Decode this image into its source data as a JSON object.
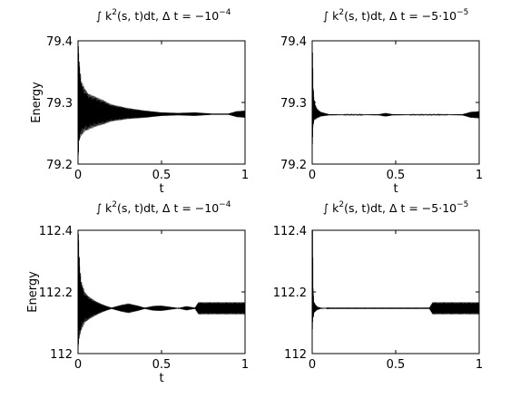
{
  "chart_data": [
    {
      "type": "line",
      "title": {
        "pre": "∫ k",
        "sup1": "2",
        "mid": "(s, t)dt,   Δ t = −10",
        "sup2": "−4"
      },
      "xlabel": "t",
      "ylabel": "Energy",
      "xlim": [
        0,
        1
      ],
      "ylim": [
        79.2,
        79.4
      ],
      "xticks": [
        "0",
        "0.5",
        "1"
      ],
      "yticks": [
        "79.2",
        "79.3",
        "79.4"
      ],
      "series": [
        {
          "color": "#000000",
          "x": [
            0,
            0.005,
            0.01,
            0.02,
            0.04,
            0.06,
            0.1,
            0.15,
            0.2,
            0.3,
            0.4,
            0.5,
            0.6,
            0.7,
            0.8,
            0.9,
            0.95,
            1.0
          ],
          "mean": [
            79.3,
            79.305,
            79.3,
            79.29,
            79.288,
            79.285,
            79.285,
            79.284,
            79.283,
            79.282,
            79.281,
            79.281,
            79.281,
            79.281,
            79.281,
            79.281,
            79.281,
            79.281
          ],
          "amplitude": [
            0.1,
            0.08,
            0.06,
            0.045,
            0.035,
            0.03,
            0.025,
            0.02,
            0.014,
            0.009,
            0.006,
            0.003,
            0.002,
            0.003,
            0.001,
            0.001,
            0.005,
            0.006
          ]
        }
      ]
    },
    {
      "type": "line",
      "title": {
        "pre": "∫ k",
        "sup1": "2",
        "mid": "(s, t)dt,   Δ t = −5·10",
        "sup2": "−5"
      },
      "xlabel": "t",
      "ylabel": "",
      "xlim": [
        0,
        1
      ],
      "ylim": [
        79.2,
        79.4
      ],
      "xticks": [
        "0",
        "0.5",
        "1"
      ],
      "yticks": [
        "79.2",
        "79.3",
        "79.4"
      ],
      "series": [
        {
          "color": "#000000",
          "x": [
            0,
            0.003,
            0.006,
            0.01,
            0.02,
            0.03,
            0.05,
            0.1,
            0.2,
            0.3,
            0.4,
            0.44,
            0.48,
            0.6,
            0.8,
            0.9,
            0.95,
            1.0
          ],
          "mean": [
            79.3,
            79.31,
            79.295,
            79.29,
            79.284,
            79.282,
            79.281,
            79.28,
            79.28,
            79.28,
            79.28,
            79.28,
            79.28,
            79.28,
            79.28,
            79.28,
            79.28,
            79.28
          ],
          "amplitude": [
            0.1,
            0.07,
            0.04,
            0.02,
            0.012,
            0.008,
            0.004,
            0.001,
            0.0005,
            0.0005,
            0.001,
            0.003,
            0.001,
            0.0005,
            0.0005,
            0.001,
            0.005,
            0.006
          ]
        }
      ]
    },
    {
      "type": "line",
      "title": {
        "pre": "∫ k",
        "sup1": "2",
        "mid": "(s, t)dt,   Δ t = −10",
        "sup2": "−4"
      },
      "xlabel": "t",
      "ylabel": "Energy",
      "xlim": [
        0,
        1
      ],
      "ylim": [
        112,
        112.4
      ],
      "xticks": [
        "0",
        "0.5",
        "1"
      ],
      "yticks": [
        "112",
        "112.2",
        "112.4"
      ],
      "series": [
        {
          "color": "#000000",
          "x": [
            0,
            0.005,
            0.01,
            0.02,
            0.04,
            0.06,
            0.1,
            0.15,
            0.2,
            0.25,
            0.3,
            0.35,
            0.4,
            0.45,
            0.5,
            0.55,
            0.6,
            0.65,
            0.7,
            0.72,
            0.75,
            0.8,
            0.9,
            1.0
          ],
          "mean": [
            112.2,
            112.21,
            112.17,
            112.155,
            112.15,
            112.148,
            112.147,
            112.147,
            112.147,
            112.147,
            112.147,
            112.147,
            112.147,
            112.147,
            112.147,
            112.147,
            112.147,
            112.147,
            112.147,
            112.147,
            112.147,
            112.147,
            112.147,
            112.147
          ],
          "amplitude": [
            0.2,
            0.17,
            0.12,
            0.08,
            0.05,
            0.04,
            0.025,
            0.012,
            0.002,
            0.01,
            0.016,
            0.01,
            0.002,
            0.008,
            0.009,
            0.005,
            0.001,
            0.007,
            0.002,
            0.02,
            0.02,
            0.02,
            0.02,
            0.02
          ]
        }
      ]
    },
    {
      "type": "line",
      "title": {
        "pre": "∫ k",
        "sup1": "2",
        "mid": "(s, t)dt,   Δ t = −5·10",
        "sup2": "−5"
      },
      "xlabel": "",
      "ylabel": "",
      "xlim": [
        0,
        1
      ],
      "ylim": [
        112,
        112.4
      ],
      "xticks": [
        "0",
        "0.5",
        "1"
      ],
      "yticks": [
        "112",
        "112.2",
        "112.4"
      ],
      "series": [
        {
          "color": "#000000",
          "x": [
            0,
            0.003,
            0.006,
            0.01,
            0.02,
            0.03,
            0.05,
            0.1,
            0.3,
            0.5,
            0.7,
            0.72,
            0.75,
            0.8,
            0.9,
            1.0
          ],
          "mean": [
            112.2,
            112.25,
            112.16,
            112.15,
            112.148,
            112.147,
            112.147,
            112.147,
            112.147,
            112.147,
            112.147,
            112.147,
            112.147,
            112.147,
            112.147,
            112.147
          ],
          "amplitude": [
            0.2,
            0.15,
            0.06,
            0.02,
            0.012,
            0.006,
            0.002,
            0.0005,
            0.0005,
            0.0005,
            0.0005,
            0.02,
            0.02,
            0.02,
            0.02,
            0.02
          ]
        }
      ]
    }
  ]
}
